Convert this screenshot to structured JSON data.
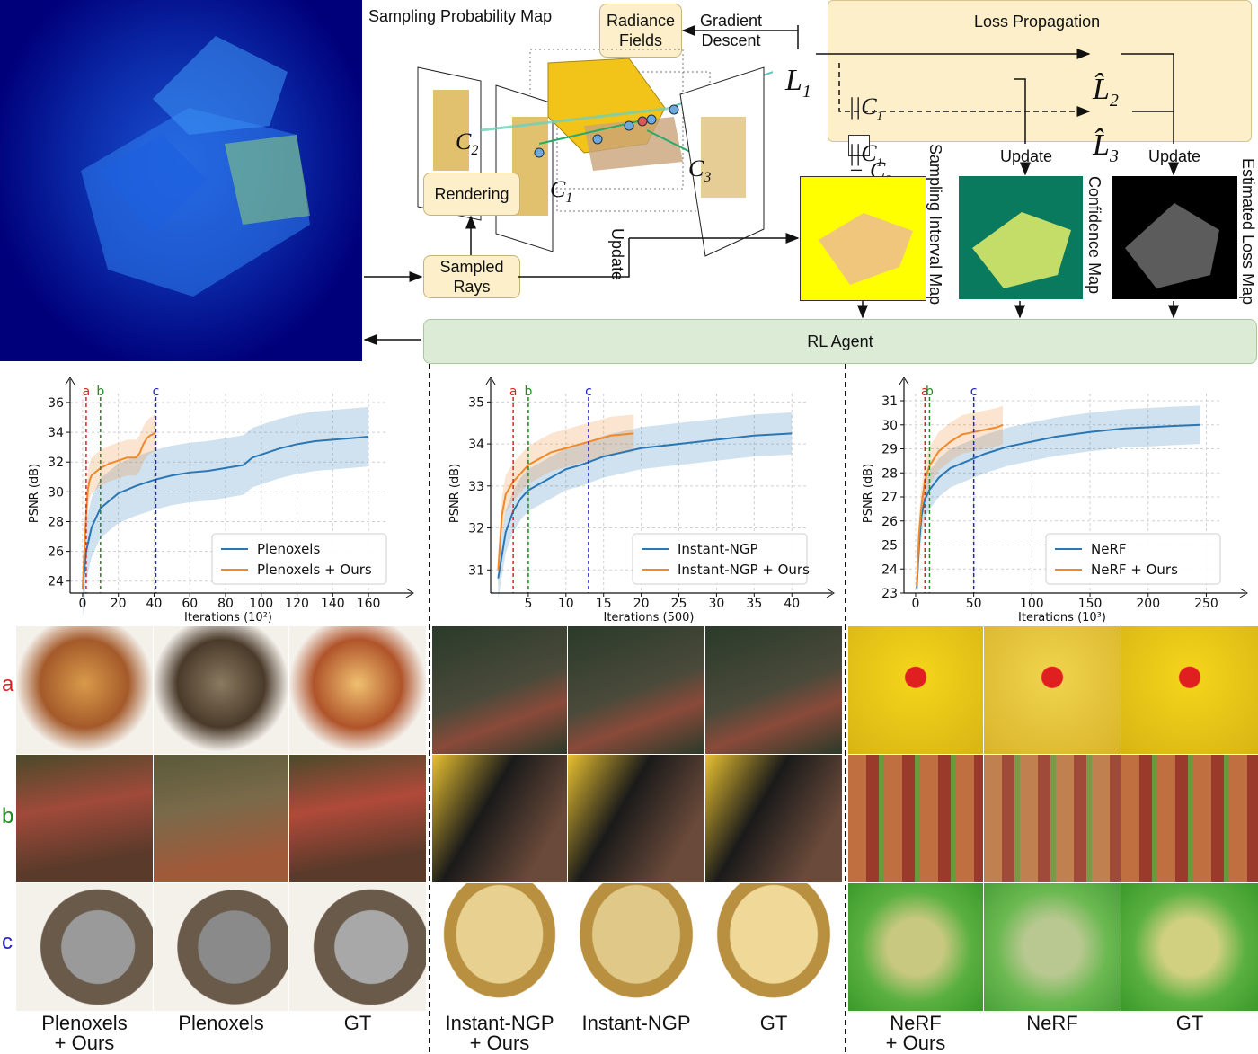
{
  "diagram": {
    "sampling_prob_map_label": "Sampling Probability Map",
    "radiance_fields": "Radiance\nFields",
    "gradient_descent": "Gradient\nDescent",
    "rendering": "Rendering",
    "sampled_rays": "Sampled\nRays",
    "update_label": "Update",
    "loss_propagation": "Loss Propagation",
    "L1": "L",
    "L1_sub": "1",
    "L2_hat": "L̂",
    "L2_sub": "2",
    "L3_hat": "L̂",
    "L3_sub": "3",
    "loss_term_1": "||C₁ ☐ − C₂ ☐||²₂",
    "loss_term_2": "||C₁ ☐ − C₃ ■||²₂",
    "camera_labels": [
      "C",
      "C",
      "C"
    ],
    "camera_subs": [
      "2",
      "1",
      "3"
    ],
    "update_1": "Update",
    "update_2": "Update",
    "sampling_interval_map": "Sampling Interval Map",
    "confidence_map": "Confidence Map",
    "estimated_loss_map": "Estimated Loss Map",
    "rl_agent": "RL Agent",
    "colors": {
      "box_fill": "#fcefc9",
      "loss_panel": "#fcefc9",
      "rl_fill": "#dcebd6",
      "prob_map_bg": "#00007a",
      "interval_map_bg": "#ffff00",
      "confidence_bg": "#0a7a5e",
      "loss_map_bg": "#000000"
    }
  },
  "row_labels": {
    "a": "a",
    "b": "b",
    "c": "c"
  },
  "captions": [
    "Plenoxels\n+ Ours",
    "Plenoxels",
    "GT",
    "Instant-NGP\n+ Ours",
    "Instant-NGP",
    "GT",
    "NeRF\n+ Ours",
    "NeRF",
    "GT"
  ],
  "chart_data": [
    {
      "type": "line",
      "xlabel": "Iterations (10²)",
      "ylabel": "PSNR (dB)",
      "xlim": [
        -7,
        170
      ],
      "ylim": [
        23.2,
        36.6
      ],
      "xticks": [
        0,
        20,
        40,
        60,
        80,
        100,
        120,
        140,
        160
      ],
      "yticks": [
        24,
        26,
        28,
        30,
        32,
        34,
        36
      ],
      "markers": [
        {
          "label": "a",
          "x": 2,
          "color": "#dd2222"
        },
        {
          "label": "b",
          "x": 10,
          "color": "#228822"
        },
        {
          "label": "c",
          "x": 41,
          "color": "#2222cc"
        }
      ],
      "legend": "bottom-right",
      "grid": true,
      "series": [
        {
          "name": "Plenoxels",
          "color": "#2a77b4",
          "x": [
            0,
            2,
            5,
            10,
            20,
            30,
            40,
            50,
            60,
            70,
            80,
            90,
            95,
            100,
            110,
            120,
            130,
            140,
            150,
            160
          ],
          "y": [
            23.5,
            26.0,
            27.6,
            28.9,
            29.9,
            30.4,
            30.8,
            31.1,
            31.3,
            31.4,
            31.6,
            31.8,
            32.3,
            32.5,
            32.9,
            33.2,
            33.4,
            33.5,
            33.6,
            33.7
          ],
          "band": [
            2.0,
            2.0,
            2.0,
            2.0,
            2.0,
            2.0,
            2.0,
            2.0,
            2.0,
            2.0,
            2.0,
            2.0,
            2.0,
            2.0,
            2.0,
            2.0,
            2.0,
            2.0,
            2.0,
            2.0
          ]
        },
        {
          "name": "Plenoxels + Ours",
          "color": "#f0892a",
          "x": [
            0,
            1,
            2,
            3,
            4,
            5,
            6,
            8,
            10,
            15,
            20,
            25,
            30,
            32,
            34,
            36,
            38,
            40,
            41
          ],
          "y": [
            23.5,
            26.0,
            28.5,
            30.2,
            30.8,
            31.1,
            31.2,
            31.4,
            31.6,
            31.9,
            32.1,
            32.3,
            32.3,
            32.6,
            33.2,
            33.6,
            33.8,
            33.9,
            34.0
          ],
          "band": [
            1.2,
            1.2,
            1.2,
            1.2,
            1.2,
            1.2,
            1.2,
            1.2,
            1.2,
            1.2,
            1.2,
            1.2,
            1.2,
            1.2,
            1.2,
            1.2,
            1.2,
            1.2,
            1.2
          ]
        }
      ]
    },
    {
      "type": "line",
      "xlabel": "Iterations (500)",
      "ylabel": "PSNR (dB)",
      "xlim": [
        0,
        42
      ],
      "ylim": [
        30.45,
        35.2
      ],
      "xticks": [
        5,
        10,
        15,
        20,
        25,
        30,
        35,
        40
      ],
      "yticks": [
        31,
        32,
        33,
        34,
        35
      ],
      "markers": [
        {
          "label": "a",
          "x": 3,
          "color": "#dd2222"
        },
        {
          "label": "b",
          "x": 5,
          "color": "#228822"
        },
        {
          "label": "c",
          "x": 13,
          "color": "#2222cc"
        }
      ],
      "legend": "bottom-right",
      "grid": true,
      "series": [
        {
          "name": "Instant-NGP",
          "color": "#2a77b4",
          "x": [
            1,
            2,
            3,
            4,
            5,
            6,
            8,
            10,
            12,
            15,
            20,
            25,
            30,
            35,
            40
          ],
          "y": [
            30.8,
            31.9,
            32.4,
            32.7,
            32.9,
            33.0,
            33.2,
            33.4,
            33.5,
            33.7,
            33.9,
            34.0,
            34.1,
            34.2,
            34.25
          ],
          "band": [
            0.5,
            0.5,
            0.5,
            0.5,
            0.5,
            0.5,
            0.5,
            0.5,
            0.5,
            0.5,
            0.5,
            0.5,
            0.5,
            0.5,
            0.5
          ]
        },
        {
          "name": "Instant-NGP + Ours",
          "color": "#f0892a",
          "x": [
            1,
            1.5,
            2,
            3,
            4,
            5,
            6,
            8,
            10,
            12,
            14,
            16,
            19
          ],
          "y": [
            31.0,
            32.3,
            32.8,
            33.1,
            33.3,
            33.5,
            33.6,
            33.8,
            33.9,
            34.0,
            34.1,
            34.2,
            34.25
          ],
          "band": [
            0.45,
            0.45,
            0.45,
            0.45,
            0.45,
            0.45,
            0.45,
            0.45,
            0.45,
            0.45,
            0.45,
            0.45,
            0.45
          ]
        }
      ]
    },
    {
      "type": "line",
      "xlabel": "Iterations (10³)",
      "ylabel": "PSNR (dB)",
      "xlim": [
        -10,
        262
      ],
      "ylim": [
        23.0,
        31.3
      ],
      "xticks": [
        0,
        50,
        100,
        150,
        200,
        250
      ],
      "yticks": [
        23,
        24,
        25,
        26,
        27,
        28,
        29,
        30,
        31
      ],
      "markers": [
        {
          "label": "a",
          "x": 8,
          "color": "#dd2222"
        },
        {
          "label": "b",
          "x": 12,
          "color": "#228822"
        },
        {
          "label": "c",
          "x": 50,
          "color": "#2222cc"
        }
      ],
      "legend": "bottom-right",
      "grid": true,
      "series": [
        {
          "name": "NeRF",
          "color": "#2a77b4",
          "x": [
            1,
            3,
            5,
            8,
            12,
            20,
            30,
            40,
            50,
            60,
            80,
            100,
            120,
            150,
            180,
            200,
            220,
            245
          ],
          "y": [
            23.2,
            25.0,
            26.2,
            26.9,
            27.3,
            27.8,
            28.2,
            28.4,
            28.6,
            28.8,
            29.1,
            29.3,
            29.5,
            29.7,
            29.85,
            29.9,
            29.95,
            30.0
          ],
          "band": [
            0.8,
            0.8,
            0.8,
            0.8,
            0.8,
            0.8,
            0.8,
            0.8,
            0.8,
            0.8,
            0.8,
            0.8,
            0.8,
            0.8,
            0.8,
            0.8,
            0.8,
            0.8
          ]
        },
        {
          "name": "NeRF + Ours",
          "color": "#f0892a",
          "x": [
            1,
            3,
            5,
            8,
            12,
            20,
            30,
            40,
            50,
            60,
            70,
            75
          ],
          "y": [
            23.3,
            25.5,
            26.6,
            27.7,
            28.3,
            28.9,
            29.3,
            29.6,
            29.7,
            29.8,
            29.9,
            30.0
          ],
          "band": [
            0.8,
            0.8,
            0.8,
            0.8,
            0.8,
            0.8,
            0.8,
            0.8,
            0.8,
            0.8,
            0.8,
            0.8
          ]
        }
      ]
    }
  ]
}
